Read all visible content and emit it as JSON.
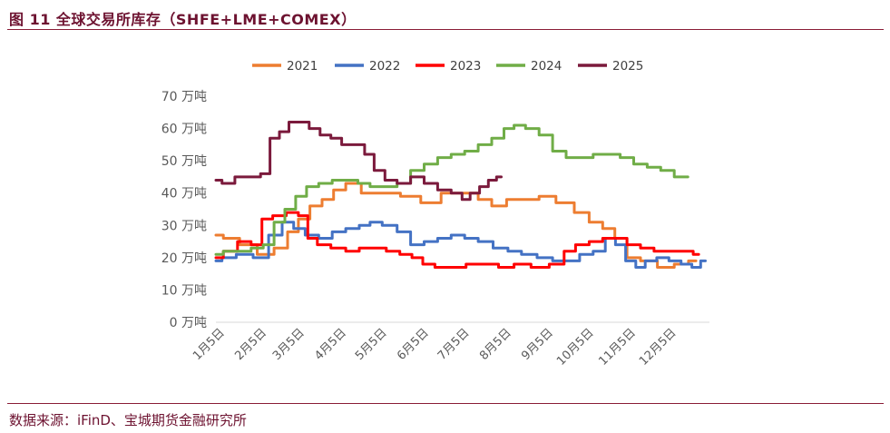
{
  "header": {
    "figure_title": "图 11 全球交易所库存（SHFE+LME+COMEX）"
  },
  "footer": {
    "source": "数据来源：iFinD、宝城期货金融研究所"
  },
  "colors": {
    "accent": "#7a1a36",
    "2021": "#ed7d31",
    "2022": "#4472c4",
    "2023": "#ff0000",
    "2024": "#70ad47",
    "2025": "#7b1a3c"
  },
  "chart_data": {
    "type": "line",
    "title": "",
    "xlabel": "",
    "ylabel": "",
    "ylim": [
      0,
      70
    ],
    "y_ticks": [
      0,
      10,
      20,
      30,
      40,
      50,
      60,
      70
    ],
    "y_tick_labels": [
      "0 万吨",
      "10 万吨",
      "20 万吨",
      "30 万吨",
      "40 万吨",
      "50 万吨",
      "60 万吨",
      "70 万吨"
    ],
    "x_range_day_of_year": [
      1,
      366
    ],
    "x_ticks": [
      5,
      36,
      64,
      95,
      125,
      156,
      186,
      217,
      248,
      278,
      309,
      339
    ],
    "x_tick_labels": [
      "1月5日",
      "2月5日",
      "3月5日",
      "4月5日",
      "5月5日",
      "6月5日",
      "7月5日",
      "8月5日",
      "9月5日",
      "10月5日",
      "11月5日",
      "12月5日"
    ],
    "legend_position": "top",
    "grid": false,
    "series": [
      {
        "name": "2021",
        "color": "#ed7d31",
        "points": [
          [
            1,
            27
          ],
          [
            12,
            26
          ],
          [
            25,
            24
          ],
          [
            38,
            21
          ],
          [
            50,
            23
          ],
          [
            58,
            28
          ],
          [
            66,
            32
          ],
          [
            75,
            36
          ],
          [
            84,
            38
          ],
          [
            92,
            41
          ],
          [
            102,
            43
          ],
          [
            115,
            40
          ],
          [
            130,
            40
          ],
          [
            145,
            39
          ],
          [
            160,
            37
          ],
          [
            175,
            40
          ],
          [
            190,
            40
          ],
          [
            200,
            38
          ],
          [
            210,
            36
          ],
          [
            222,
            38
          ],
          [
            235,
            38
          ],
          [
            245,
            39
          ],
          [
            260,
            37
          ],
          [
            272,
            34
          ],
          [
            282,
            31
          ],
          [
            292,
            29
          ],
          [
            300,
            26
          ],
          [
            310,
            20
          ],
          [
            320,
            19
          ],
          [
            335,
            17
          ],
          [
            345,
            18
          ],
          [
            356,
            19
          ]
        ]
      },
      {
        "name": "2022",
        "color": "#4472c4",
        "points": [
          [
            1,
            19
          ],
          [
            10,
            20
          ],
          [
            22,
            21
          ],
          [
            35,
            20
          ],
          [
            45,
            27
          ],
          [
            55,
            31
          ],
          [
            62,
            29
          ],
          [
            72,
            27
          ],
          [
            82,
            26
          ],
          [
            92,
            28
          ],
          [
            102,
            29
          ],
          [
            112,
            30
          ],
          [
            118,
            31
          ],
          [
            130,
            30
          ],
          [
            140,
            28
          ],
          [
            150,
            24
          ],
          [
            160,
            25
          ],
          [
            170,
            26
          ],
          [
            180,
            27
          ],
          [
            190,
            26
          ],
          [
            200,
            25
          ],
          [
            212,
            23
          ],
          [
            222,
            22
          ],
          [
            232,
            21
          ],
          [
            245,
            20
          ],
          [
            255,
            19
          ],
          [
            265,
            19
          ],
          [
            275,
            21
          ],
          [
            285,
            22
          ],
          [
            293,
            26
          ],
          [
            300,
            24
          ],
          [
            308,
            19
          ],
          [
            315,
            17
          ],
          [
            322,
            19
          ],
          [
            332,
            20
          ],
          [
            340,
            19
          ],
          [
            350,
            18
          ],
          [
            356,
            17
          ],
          [
            363,
            19
          ]
        ]
      },
      {
        "name": "2023",
        "color": "#ff0000",
        "points": [
          [
            1,
            20
          ],
          [
            12,
            22
          ],
          [
            22,
            25
          ],
          [
            32,
            24
          ],
          [
            38,
            32
          ],
          [
            48,
            33
          ],
          [
            58,
            34
          ],
          [
            66,
            33
          ],
          [
            72,
            26
          ],
          [
            80,
            24
          ],
          [
            92,
            23
          ],
          [
            102,
            22
          ],
          [
            112,
            23
          ],
          [
            122,
            23
          ],
          [
            132,
            22
          ],
          [
            142,
            21
          ],
          [
            150,
            20
          ],
          [
            158,
            18
          ],
          [
            168,
            17
          ],
          [
            180,
            17
          ],
          [
            192,
            18
          ],
          [
            205,
            18
          ],
          [
            215,
            17
          ],
          [
            228,
            18
          ],
          [
            240,
            17
          ],
          [
            255,
            18
          ],
          [
            262,
            22
          ],
          [
            272,
            24
          ],
          [
            282,
            25
          ],
          [
            292,
            26
          ],
          [
            300,
            26
          ],
          [
            310,
            24
          ],
          [
            320,
            23
          ],
          [
            330,
            22
          ],
          [
            340,
            22
          ],
          [
            350,
            22
          ],
          [
            358,
            21
          ]
        ]
      },
      {
        "name": "2024",
        "color": "#70ad47",
        "points": [
          [
            1,
            21
          ],
          [
            12,
            22
          ],
          [
            22,
            22
          ],
          [
            32,
            23
          ],
          [
            40,
            24
          ],
          [
            48,
            31
          ],
          [
            56,
            35
          ],
          [
            64,
            39
          ],
          [
            72,
            42
          ],
          [
            82,
            43
          ],
          [
            92,
            44
          ],
          [
            102,
            44
          ],
          [
            110,
            43
          ],
          [
            120,
            42
          ],
          [
            130,
            42
          ],
          [
            140,
            43
          ],
          [
            150,
            47
          ],
          [
            160,
            49
          ],
          [
            170,
            51
          ],
          [
            180,
            52
          ],
          [
            190,
            53
          ],
          [
            200,
            55
          ],
          [
            210,
            57
          ],
          [
            218,
            60
          ],
          [
            225,
            61
          ],
          [
            235,
            60
          ],
          [
            245,
            58
          ],
          [
            255,
            53
          ],
          [
            265,
            51
          ],
          [
            275,
            51
          ],
          [
            285,
            52
          ],
          [
            295,
            52
          ],
          [
            305,
            51
          ],
          [
            315,
            49
          ],
          [
            325,
            48
          ],
          [
            335,
            47
          ],
          [
            345,
            45
          ],
          [
            350,
            45
          ]
        ]
      },
      {
        "name": "2025",
        "color": "#7b1a3c",
        "points": [
          [
            1,
            44
          ],
          [
            10,
            43
          ],
          [
            20,
            45
          ],
          [
            30,
            45
          ],
          [
            38,
            46
          ],
          [
            44,
            57
          ],
          [
            52,
            59
          ],
          [
            58,
            62
          ],
          [
            66,
            62
          ],
          [
            74,
            60
          ],
          [
            82,
            58
          ],
          [
            90,
            57
          ],
          [
            98,
            55
          ],
          [
            108,
            55
          ],
          [
            114,
            52
          ],
          [
            122,
            47
          ],
          [
            130,
            44
          ],
          [
            140,
            43
          ],
          [
            150,
            45
          ],
          [
            160,
            43
          ],
          [
            170,
            41
          ],
          [
            180,
            40
          ],
          [
            186,
            38
          ],
          [
            192,
            40
          ],
          [
            200,
            42
          ],
          [
            205,
            44
          ],
          [
            212,
            45
          ]
        ]
      }
    ]
  }
}
